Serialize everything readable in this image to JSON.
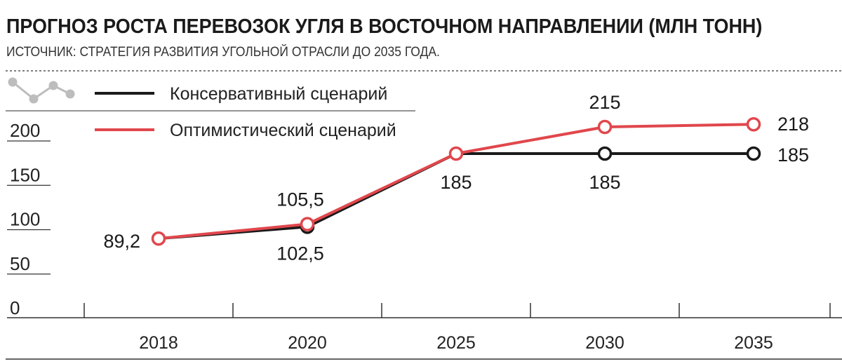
{
  "header": {
    "title": "ПРОГНОЗ РОСТА ПЕРЕВОЗОК УГЛЯ В ВОСТОЧНОМ НАПРАВЛЕНИИ (МЛН ТОНН)",
    "subtitle": "ИСТОЧНИК: СТРАТЕГИЯ РАЗВИТИЯ УГОЛЬНОЙ ОТРАСЛИ ДО 2035 ГОДА."
  },
  "colors": {
    "conservative": "#1a1a1a",
    "optimistic": "#e0474c",
    "axis": "#333333",
    "icon": "#bdbdbd"
  },
  "legend": {
    "icon": "line-chart-icon",
    "placement": "top-left"
  },
  "chart_data": {
    "type": "line",
    "title": "ПРОГНОЗ РОСТА ПЕРЕВОЗОК УГЛЯ В ВОСТОЧНОМ НАПРАВЛЕНИИ (МЛН ТОНН)",
    "x": [
      "2018",
      "2020",
      "2025",
      "2030",
      "2035"
    ],
    "ylim": [
      0,
      240
    ],
    "yticks": [
      0,
      50,
      100,
      150,
      200
    ],
    "grid": false,
    "series": [
      {
        "name": "Консервативный сценарий",
        "key": "conservative",
        "values": [
          89.2,
          102.5,
          185,
          185,
          185
        ],
        "labels": [
          "89,2",
          "102,5",
          "185",
          "185",
          "185"
        ]
      },
      {
        "name": "Оптимистический сценарий",
        "key": "optimistic",
        "values": [
          89.2,
          105.5,
          185,
          215,
          218
        ],
        "labels": [
          "",
          "105,5",
          "",
          "215",
          "218"
        ]
      }
    ]
  }
}
